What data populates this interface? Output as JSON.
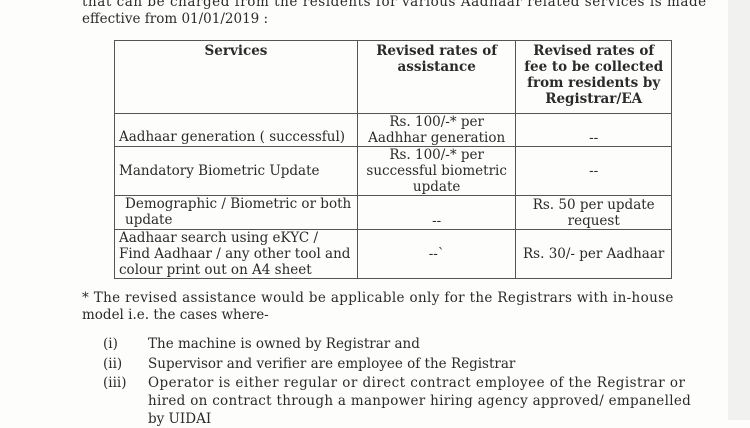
{
  "intro": {
    "line1": "that can be charged from the residents for various Aadhaar related services is made",
    "line2": "effective from 01/01/2019 :"
  },
  "table": {
    "headers": [
      "Services",
      "Revised rates of assistance",
      "Revised rates of fee to be collected from residents by Registrar/EA"
    ],
    "rows": [
      [
        "Aadhaar generation  ( successful)",
        "Rs. 100/-* per Aadhhar generation",
        "--"
      ],
      [
        "Mandatory Biometric Update",
        "Rs. 100/-* per successful biometric update",
        "--"
      ],
      [
        "Demographic / Biometric or both update",
        "--",
        "Rs. 50 per update request"
      ],
      [
        "Aadhaar search using eKYC / Find Aadhaar / any other tool and colour print out on A4 sheet",
        "--`",
        "Rs. 30/- per Aadhaar"
      ]
    ]
  },
  "note": {
    "line1": "* The revised assistance would be applicable only for the Registrars with in-house",
    "line2": "model i.e. the cases where-"
  },
  "conditions": [
    {
      "num": "(i)",
      "lines": [
        "The machine is owned by Registrar and"
      ]
    },
    {
      "num": "(ii)",
      "lines": [
        "Supervisor and verifier are employee of the Registrar"
      ]
    },
    {
      "num": "(iii)",
      "lines": [
        "Operator is either regular or direct contract employee of the Registrar or",
        "hired on contract through a manpower hiring agency approved/ empanelled",
        "by UIDAI"
      ]
    }
  ]
}
